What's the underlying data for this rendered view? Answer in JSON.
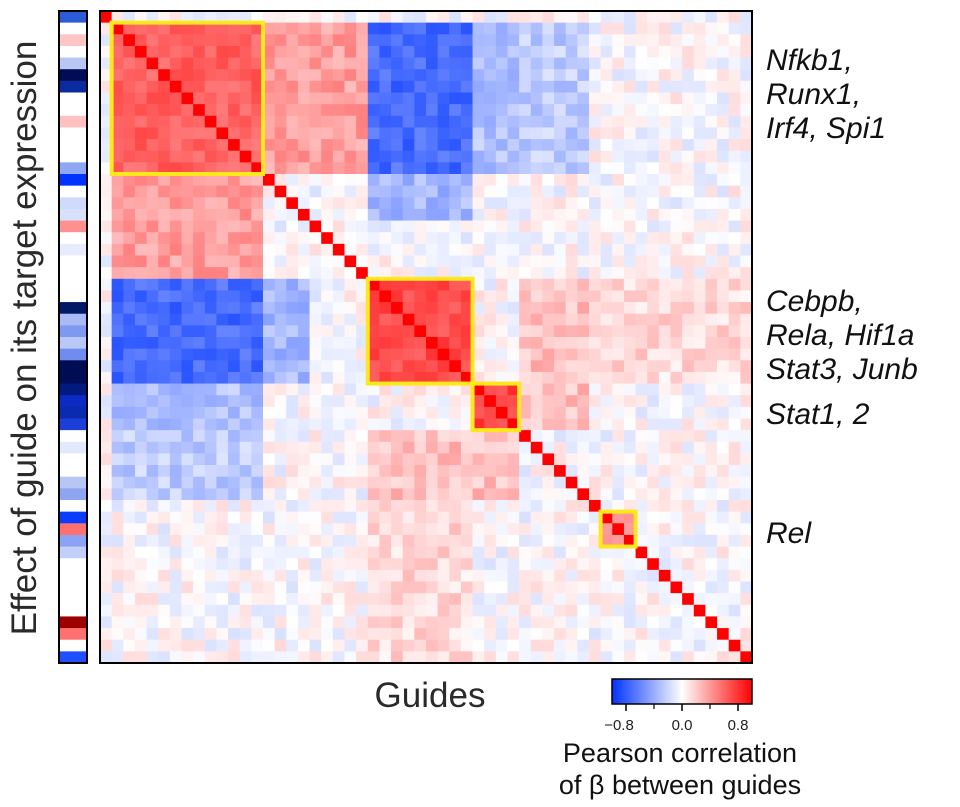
{
  "chart_data": {
    "type": "heatmap",
    "xlabel": "Guides",
    "ylabel": "Effect of guide on its target expression",
    "n_guides": 56,
    "diagonal_value": 1.0,
    "colorbar": {
      "title_line1": "Pearson correlation",
      "title_line2": "of β between guides",
      "range": [
        -1.0,
        1.0
      ],
      "ticks": [
        -0.8,
        0.0,
        0.8
      ],
      "tick_labels": [
        "−0.8",
        "0.0",
        "0.8"
      ],
      "colormap": [
        "#0033ff",
        "#ffffff",
        "#ff0000"
      ]
    },
    "clusters": [
      {
        "label_lines": [
          "Nfkb1,",
          "Runx1,",
          "Irf4, Spi1"
        ],
        "start": 1,
        "end": 13,
        "mean_corr": 0.62
      },
      {
        "label_lines": [
          "Cebpb,",
          "Rela, Hif1a",
          "Stat3, Junb"
        ],
        "start": 23,
        "end": 31,
        "mean_corr": 0.7
      },
      {
        "label_lines": [
          "Stat1, 2"
        ],
        "start": 32,
        "end": 35,
        "mean_corr": 0.75
      },
      {
        "label_lines": [
          "Rel"
        ],
        "start": 43,
        "end": 45,
        "mean_corr": 0.45
      }
    ],
    "block_interactions": [
      {
        "a": [
          1,
          13
        ],
        "b": [
          23,
          31
        ],
        "value": -0.72
      },
      {
        "a": [
          1,
          13
        ],
        "b": [
          14,
          22
        ],
        "value": 0.38
      },
      {
        "a": [
          14,
          17
        ],
        "b": [
          23,
          31
        ],
        "value": -0.35
      },
      {
        "a": [
          23,
          35
        ],
        "b": [
          36,
          41
        ],
        "value": 0.25
      },
      {
        "a": [
          1,
          13
        ],
        "b": [
          32,
          35
        ],
        "value": -0.3
      },
      {
        "a": [
          1,
          13
        ],
        "b": [
          36,
          41
        ],
        "value": -0.25
      },
      {
        "a": [
          23,
          31
        ],
        "b": [
          42,
          55
        ],
        "value": 0.15
      }
    ],
    "guide_effect_colors": [
      "#2b5bd6",
      "#ffffff",
      "#ffc4c4",
      "#ffffff",
      "#b8c6f5",
      "#000d55",
      "#0a2a9e",
      "#ffffff",
      "#ffffff",
      "#ffc0c0",
      "#ffffff",
      "#ffffff",
      "#ffffff",
      "#8fa7f4",
      "#0033ff",
      "#ffffff",
      "#d0dafa",
      "#d8e1fb",
      "#ff9090",
      "#ffffff",
      "#e6ecfd",
      "#ffffff",
      "#ffffff",
      "#ffffff",
      "#ffffff",
      "#001a66",
      "#a9baf7",
      "#7f99f0",
      "#b9c8f7",
      "#6f8cee",
      "#000d55",
      "#000d55",
      "#001a80",
      "#0b2bc4",
      "#0a2ab0",
      "#1c3fd9",
      "#ffffff",
      "#e3e9fd",
      "#ffffff",
      "#ffffff",
      "#b8c6f5",
      "#8ea5f1",
      "#ffffff",
      "#0a3cff",
      "#ff7070",
      "#8ca3f3",
      "#c2cff8",
      "#ffffff",
      "#ffffff",
      "#ffffff",
      "#ffffff",
      "#ffffff",
      "#9e0000",
      "#ff7070",
      "#ffffff",
      "#1f4fff"
    ]
  }
}
